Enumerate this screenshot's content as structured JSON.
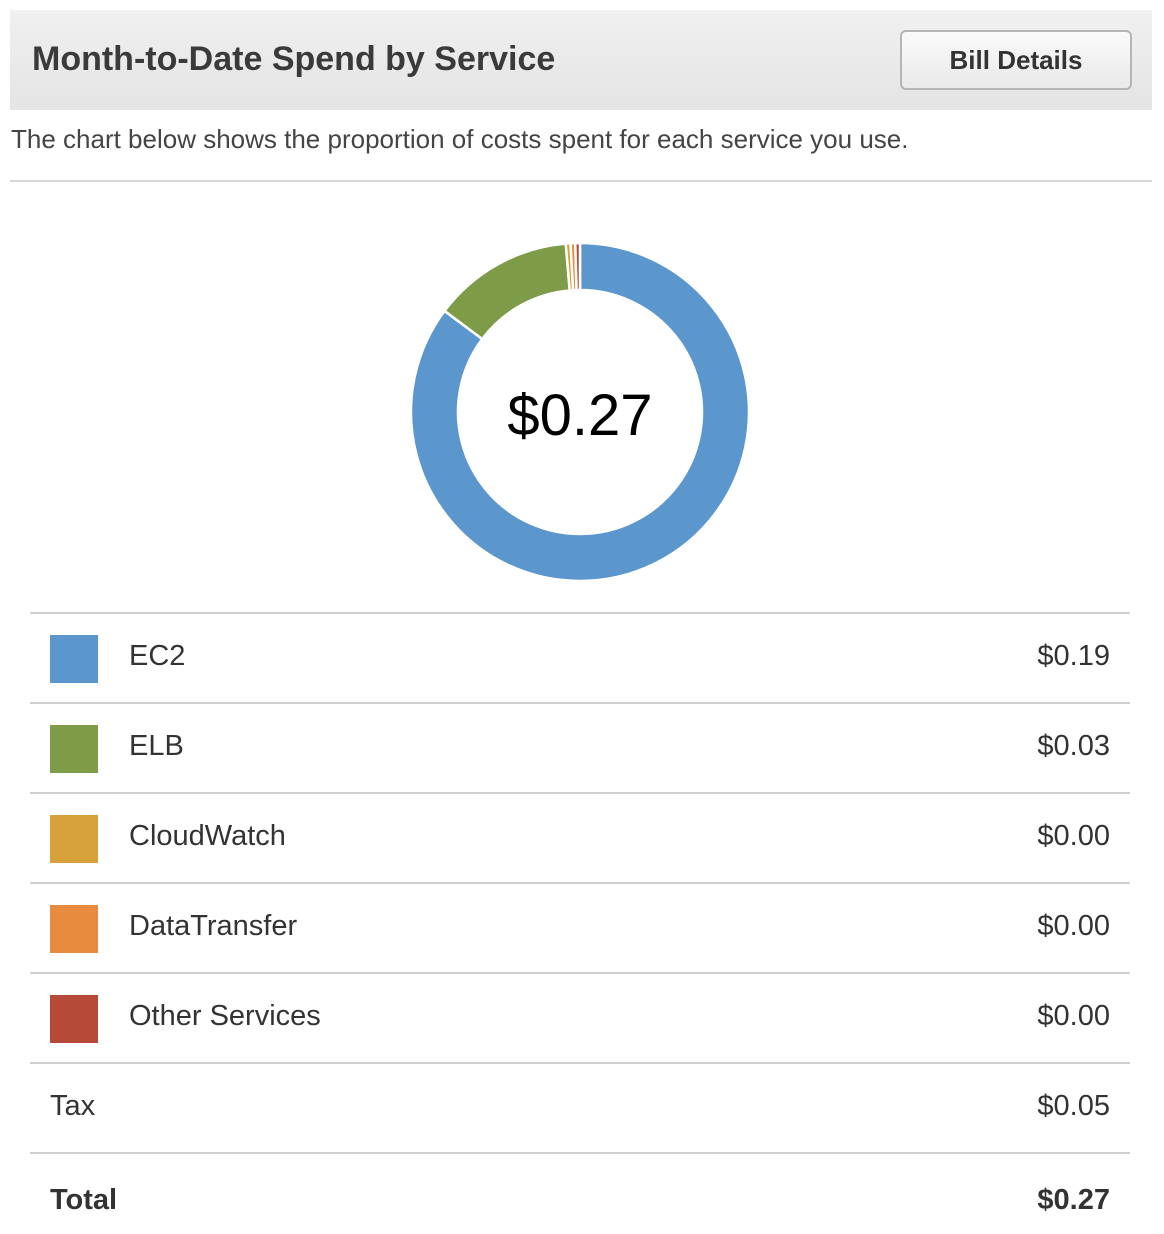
{
  "header": {
    "title": "Month-to-Date Spend by Service",
    "bill_details_label": "Bill Details"
  },
  "subtitle": "The chart below shows the proportion of costs spent for each service you use.",
  "colors": {
    "ec2": "#5b97cd",
    "elb": "#7e9b48",
    "cloudwatch": "#d6a13a",
    "datatransfer": "#e98b3f",
    "other": "#b44a37"
  },
  "chart_data": {
    "type": "pie",
    "variant": "donut",
    "center_label": "$0.27",
    "slices": [
      {
        "name": "EC2",
        "value": 0.19,
        "color": "#5b97cd"
      },
      {
        "name": "ELB",
        "value": 0.03,
        "color": "#7e9b48"
      },
      {
        "name": "CloudWatch",
        "value": 0.001,
        "color": "#d6a13a"
      },
      {
        "name": "DataTransfer",
        "value": 0.001,
        "color": "#e98b3f"
      },
      {
        "name": "Other Services",
        "value": 0.001,
        "color": "#b44a37"
      }
    ]
  },
  "services": [
    {
      "name": "EC2",
      "amount": "$0.19",
      "color": "#5b97cd"
    },
    {
      "name": "ELB",
      "amount": "$0.03",
      "color": "#7e9b48"
    },
    {
      "name": "CloudWatch",
      "amount": "$0.00",
      "color": "#d6a13a"
    },
    {
      "name": "DataTransfer",
      "amount": "$0.00",
      "color": "#e98b3f"
    },
    {
      "name": "Other Services",
      "amount": "$0.00",
      "color": "#b44a37"
    }
  ],
  "tax": {
    "label": "Tax",
    "amount": "$0.05"
  },
  "total": {
    "label": "Total",
    "amount": "$0.27"
  }
}
